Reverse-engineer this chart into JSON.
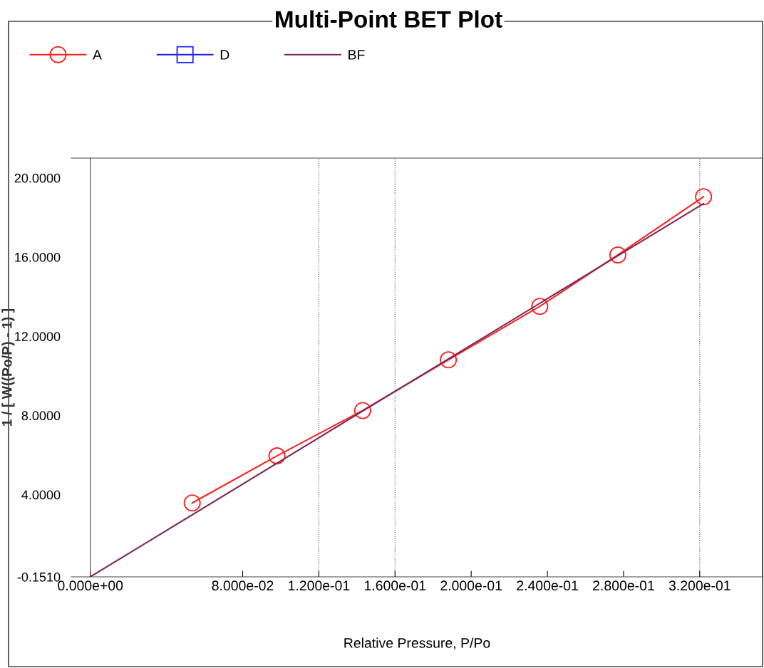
{
  "chart_data": {
    "type": "line",
    "title": "Multi-Point BET Plot",
    "xlabel": "Relative Pressure, P/Po",
    "ylabel": "1 / [ W((Po/P) - 1) ]",
    "xlim": [
      -0.01,
      0.353
    ],
    "ylim": [
      -0.151,
      21
    ],
    "xticks": [
      {
        "value": 0,
        "label": "0.000e+00"
      },
      {
        "value": 0.08,
        "label": "8.000e-02"
      },
      {
        "value": 0.12,
        "label": "1.200e-01"
      },
      {
        "value": 0.16,
        "label": "1.600e-01"
      },
      {
        "value": 0.2,
        "label": "2.000e-01"
      },
      {
        "value": 0.24,
        "label": "2.400e-01"
      },
      {
        "value": 0.28,
        "label": "2.800e-01"
      },
      {
        "value": 0.32,
        "label": "3.200e-01"
      }
    ],
    "yticks": [
      {
        "value": -0.151,
        "label": "-0.1510"
      },
      {
        "value": 4,
        "label": "4.0000"
      },
      {
        "value": 8,
        "label": "8.0000"
      },
      {
        "value": 12,
        "label": "12.0000"
      },
      {
        "value": 16,
        "label": "16.0000"
      },
      {
        "value": 20,
        "label": "20.0000"
      }
    ],
    "grid": false,
    "legend": "top left",
    "ref_lines": [
      {
        "axis": "x",
        "value": 0.12,
        "color": "#555555",
        "line_style": "dotted"
      },
      {
        "axis": "x",
        "value": 0.16,
        "color": "#555555",
        "line_style": "dotted"
      },
      {
        "axis": "x",
        "value": 0.32,
        "color": "#555555",
        "line_style": "dotted"
      }
    ],
    "series": [
      {
        "name": "A",
        "color": "#ff2020",
        "marker": "circle",
        "x": [
          0.0535,
          0.098,
          0.143,
          0.188,
          0.236,
          0.277,
          0.322
        ],
        "values": [
          3.58,
          5.96,
          8.25,
          10.81,
          13.51,
          16.11,
          19.05
        ]
      },
      {
        "name": "D",
        "color": "#2020ff",
        "marker": "square"
      },
      {
        "name": "BF",
        "color": "#7a2a5a",
        "marker": "none",
        "x": [
          0,
          0.322
        ],
        "values": [
          -0.15,
          18.7
        ]
      }
    ]
  }
}
